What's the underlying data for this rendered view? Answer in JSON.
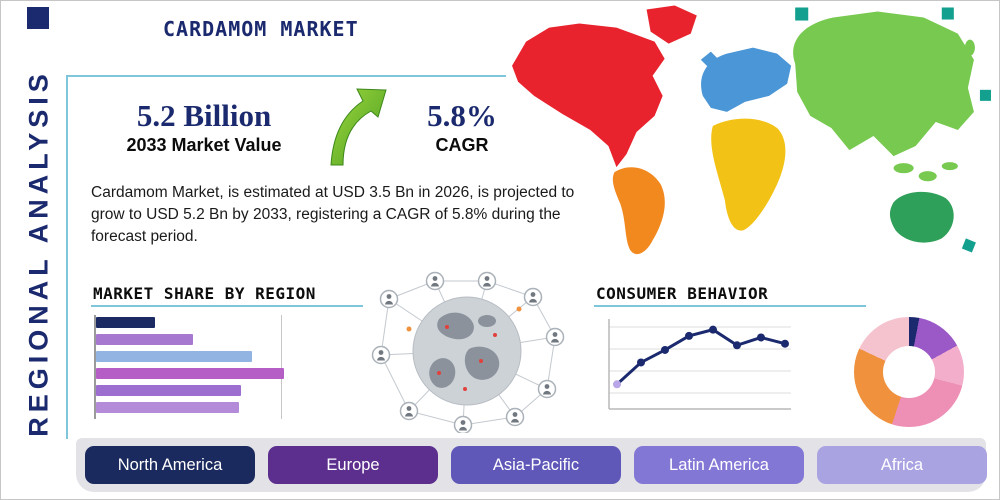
{
  "header": {
    "title": "CARDAMOM MARKET",
    "vertical_label": "REGIONAL ANALYSIS"
  },
  "highlight": {
    "market_value": "5.2 Billion",
    "market_value_caption": "2033 Market Value",
    "cagr_value": "5.8%",
    "cagr_caption": "CAGR"
  },
  "summary": "Cardamom Market, is estimated at USD 3.5 Bn in 2026, is projected to grow to USD 5.2 Bn by 2033, registering a CAGR of 5.8% during the forecast period.",
  "section_titles": {
    "market_share": "MARKET SHARE BY REGION",
    "consumer_behavior": "CONSUMER BEHAVIOR"
  },
  "region_buttons": [
    {
      "label": "North America",
      "color": "#1b2a5e"
    },
    {
      "label": "Europe",
      "color": "#5c2f8e"
    },
    {
      "label": "Asia-Pacific",
      "color": "#5f58b8"
    },
    {
      "label": "Latin America",
      "color": "#8377d6"
    },
    {
      "label": "Africa",
      "color": "#aaa3e2"
    }
  ],
  "accent_colors": {
    "navy": "#1b2a6e",
    "underline_blue": "#7fc6da",
    "arrow_green_light": "#9ed73f",
    "arrow_green_dark": "#4a9e20"
  },
  "map": {
    "colors": {
      "north_america": "#e8232e",
      "greenland": "#e8232e",
      "south_america": "#f2891f",
      "europe": "#4b96d6",
      "africa": "#f3c216",
      "asia": "#77c94f",
      "australia": "#2fa05a",
      "islands": "#14a08f"
    }
  },
  "chart_data": [
    {
      "name": "market_share_by_region",
      "type": "bar",
      "orientation": "horizontal",
      "title": "MARKET SHARE BY REGION",
      "values": [
        30,
        49,
        79,
        95,
        73,
        72
      ],
      "xlim": [
        0,
        100
      ],
      "colors": [
        "#1b2a63",
        "#a678cf",
        "#92b4e3",
        "#b55ec6",
        "#9b6ed0",
        "#b48bd9"
      ]
    },
    {
      "name": "consumer_behavior_trend",
      "type": "line",
      "title": "CONSUMER BEHAVIOR",
      "x": [
        1,
        2,
        3,
        4,
        5,
        6,
        7,
        8
      ],
      "values": [
        1.2,
        2.6,
        3.4,
        4.3,
        4.7,
        3.7,
        4.2,
        3.8
      ],
      "ylim": [
        0,
        5
      ],
      "color": "#1b2a6e",
      "first_marker_color": "#b9a6e8",
      "grid": true
    },
    {
      "name": "consumer_share_donut",
      "type": "pie",
      "donut": true,
      "segments": [
        {
          "value": 3,
          "color": "#1b2a6e"
        },
        {
          "value": 14,
          "color": "#9b59c8"
        },
        {
          "value": 12,
          "color": "#f2aecb"
        },
        {
          "value": 26,
          "color": "#ee8fb5"
        },
        {
          "value": 27,
          "color": "#f0913e"
        },
        {
          "value": 18,
          "color": "#f5c3ce"
        }
      ]
    }
  ]
}
